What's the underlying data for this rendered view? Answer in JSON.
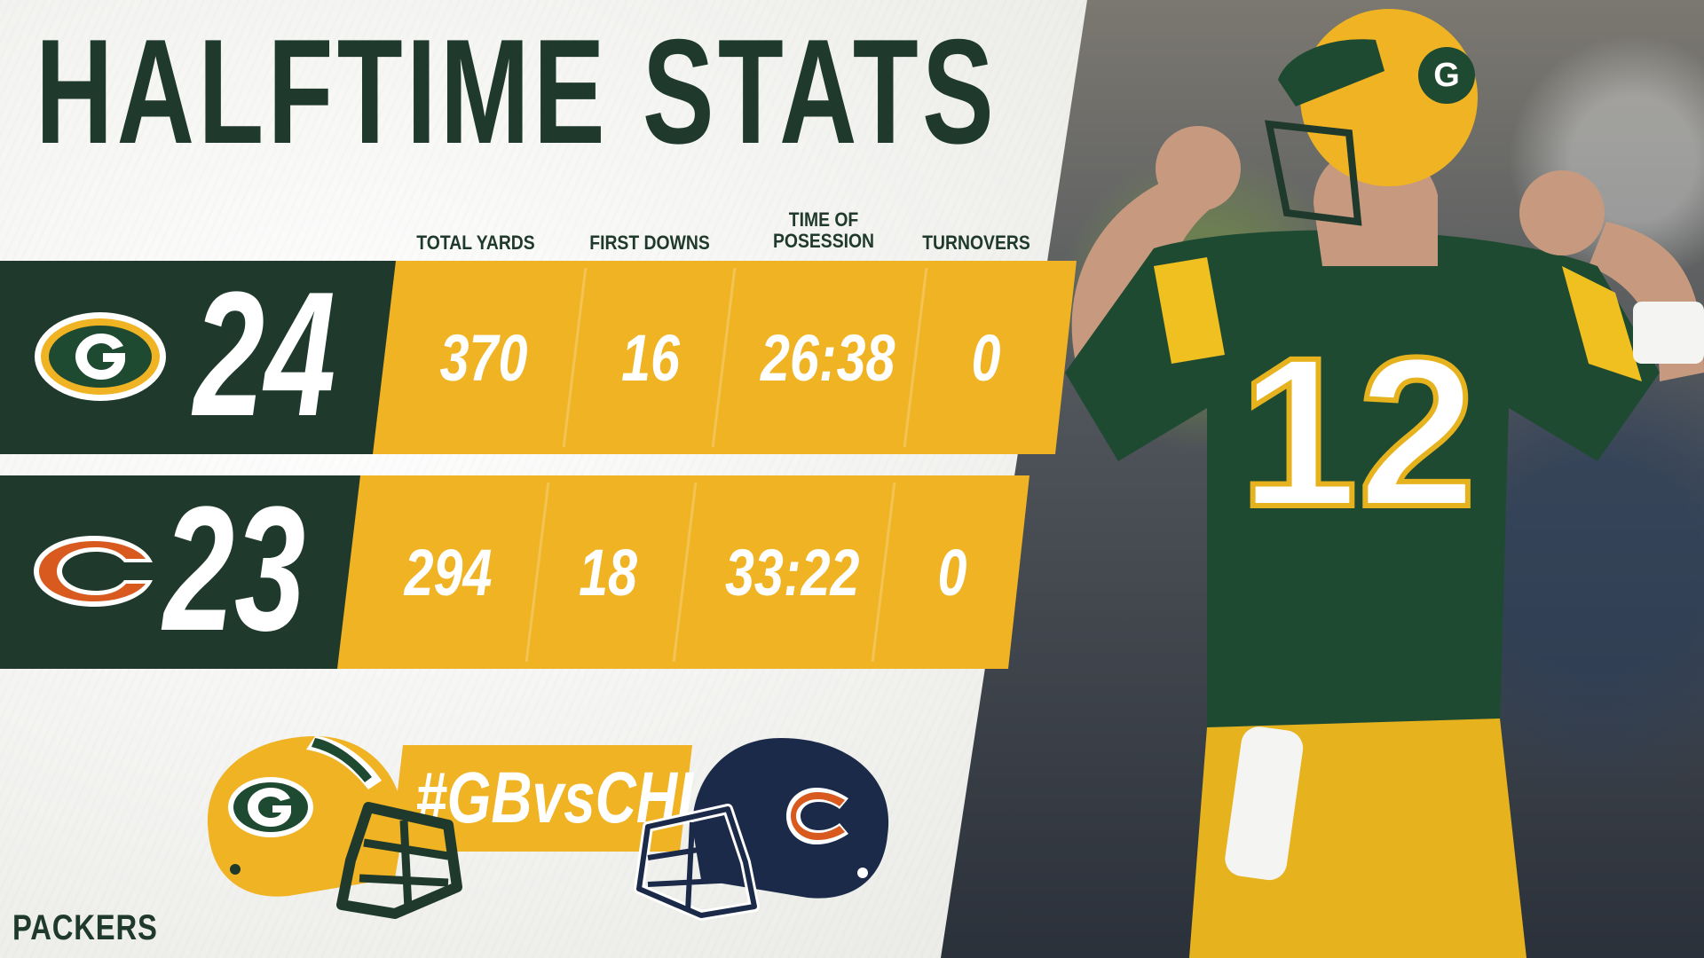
{
  "title": "HALFTIME STATS",
  "columns": [
    "TOTAL YARDS",
    "FIRST DOWNS",
    "TIME OF POSESSION",
    "TURNOVERS"
  ],
  "teams": [
    {
      "team": "packers",
      "logo": "packers-g-logo",
      "score": "24",
      "stats": [
        "370",
        "16",
        "26:38",
        "0"
      ]
    },
    {
      "team": "bears",
      "logo": "bears-c-logo",
      "score": "23",
      "stats": [
        "294",
        "18",
        "33:22",
        "0"
      ]
    }
  ],
  "hashtag": "#GBvsCHI",
  "brand": "PACKERS",
  "colors": {
    "green": "#1f3a2c",
    "gold": "#f0b324",
    "bears_navy": "#1c2a4a",
    "bears_orange": "#d85a1e"
  },
  "player_jersey_number": "12"
}
